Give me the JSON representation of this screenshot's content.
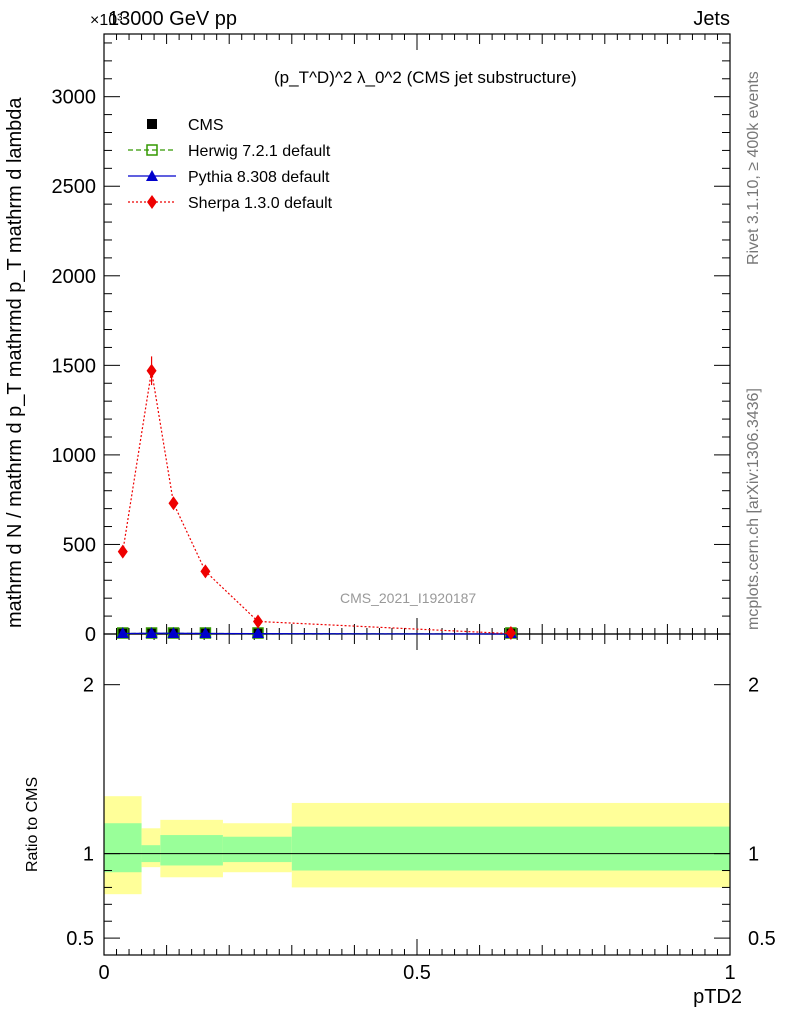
{
  "header": {
    "energy_label": "13000 GeV pp",
    "process_label": "Jets",
    "exponent_label": "×10³"
  },
  "side_labels": {
    "rivet": "Rivet 3.1.10, ≥ 400k events",
    "mcplots": "mcplots.cern.ch [arXiv:1306.3436]"
  },
  "watermark": "CMS_2021_I1920187",
  "plot_title": "(p_T^D)^2 λ_0^2 (CMS jet substructure)",
  "main_ylabel": "mathrm d N / mathrm d p_T mathrmd p_T mathrm d lambda",
  "ratio_ylabel": "Ratio to CMS",
  "xlabel": "pTD2",
  "chart_data": [
    {
      "type": "line",
      "panel": "main",
      "title": "(p_T^D)^2 λ_0^2 (CMS jet substructure)",
      "xlabel": "pTD2",
      "ylabel": "mathrm d N / mathrm d p_T mathrmd p_T mathrm d lambda",
      "xlim": [
        0,
        1
      ],
      "ylim": [
        0,
        3350
      ],
      "y_scale_exponent": 3,
      "yticks": [
        0,
        500,
        1000,
        1500,
        2000,
        2500,
        3000
      ],
      "ytick_labels": [
        "0",
        "500",
        "1000",
        "1500",
        "2000",
        "2500",
        "3000"
      ],
      "legend_position": "top-left",
      "bins": [
        {
          "x": 0.03,
          "xlo": 0.0,
          "xhi": 0.06
        },
        {
          "x": 0.076,
          "xlo": 0.06,
          "xhi": 0.09
        },
        {
          "x": 0.111,
          "xlo": 0.09,
          "xhi": 0.13
        },
        {
          "x": 0.162,
          "xlo": 0.13,
          "xhi": 0.19
        },
        {
          "x": 0.246,
          "xlo": 0.19,
          "xhi": 0.3
        },
        {
          "x": 0.65,
          "xlo": 0.3,
          "xhi": 1.0
        }
      ],
      "series": [
        {
          "name": "CMS",
          "color": "#000000",
          "marker": "square-filled",
          "x": [
            0.03,
            0.076,
            0.111,
            0.162,
            0.246,
            0.65
          ],
          "values": [
            3,
            4,
            4,
            3,
            2,
            0
          ]
        },
        {
          "name": "Herwig 7.2.1 default",
          "color": "#339900",
          "marker": "square-open",
          "line": "dashed",
          "x": [
            0.03,
            0.076,
            0.111,
            0.162,
            0.246,
            0.65
          ],
          "values": [
            3,
            4,
            4,
            3,
            2,
            0
          ]
        },
        {
          "name": "Pythia 8.308 default",
          "color": "#0000cc",
          "marker": "triangle",
          "line": "solid",
          "x": [
            0.03,
            0.076,
            0.111,
            0.162,
            0.246,
            0.65
          ],
          "values": [
            3,
            4,
            4,
            3,
            2,
            0
          ]
        },
        {
          "name": "Sherpa 1.3.0 default",
          "color": "#ee0000",
          "marker": "diamond",
          "line": "dotted",
          "x": [
            0.03,
            0.076,
            0.111,
            0.162,
            0.246,
            0.65
          ],
          "values": [
            460,
            1470,
            730,
            350,
            70,
            2
          ],
          "errors": [
            20,
            80,
            30,
            15,
            5,
            1
          ]
        }
      ]
    },
    {
      "type": "area",
      "panel": "ratio",
      "ylabel": "Ratio to CMS",
      "xlabel": "pTD2",
      "xlim": [
        0,
        1
      ],
      "ylim": [
        0.4,
        2.3
      ],
      "yticks": [
        0.5,
        1,
        2
      ],
      "ytick_labels": [
        "0.5",
        "1",
        "2"
      ],
      "xticks": [
        0,
        0.5,
        1
      ],
      "xtick_labels": [
        "0",
        "0.5",
        "1"
      ],
      "bands": [
        {
          "xlo": 0.0,
          "xhi": 0.06,
          "inner": [
            0.89,
            1.18
          ],
          "outer": [
            0.76,
            1.34
          ]
        },
        {
          "xlo": 0.06,
          "xhi": 0.09,
          "inner": [
            0.95,
            1.05
          ],
          "outer": [
            0.92,
            1.15
          ]
        },
        {
          "xlo": 0.09,
          "xhi": 0.19,
          "inner": [
            0.93,
            1.11
          ],
          "outer": [
            0.86,
            1.2
          ]
        },
        {
          "xlo": 0.19,
          "xhi": 0.3,
          "inner": [
            0.95,
            1.1
          ],
          "outer": [
            0.89,
            1.18
          ]
        },
        {
          "xlo": 0.3,
          "xhi": 1.0,
          "inner": [
            0.9,
            1.16
          ],
          "outer": [
            0.8,
            1.3
          ]
        }
      ],
      "inner_band_color": "#99ff99",
      "outer_band_color": "#ffff99",
      "reference_line": 1
    }
  ]
}
